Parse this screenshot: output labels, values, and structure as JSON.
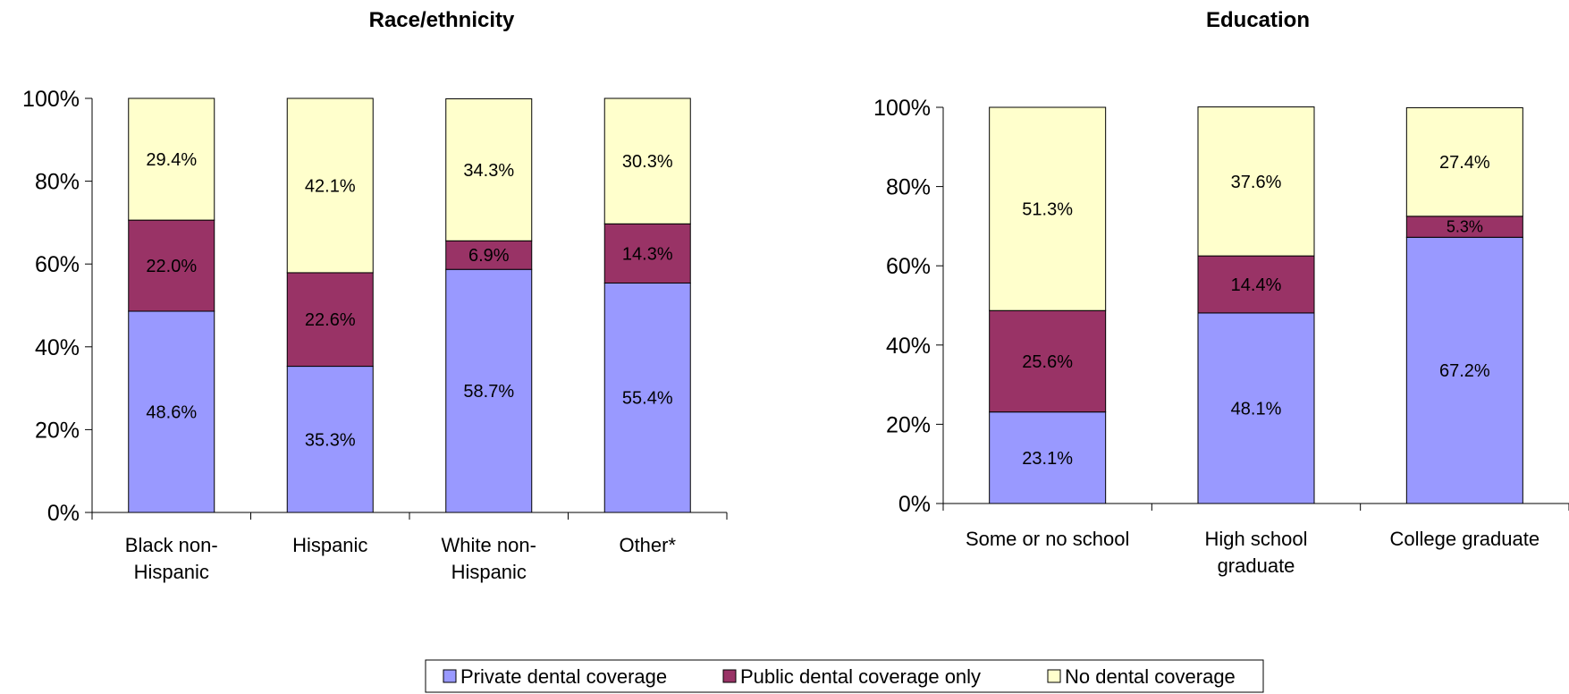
{
  "chart_data": [
    {
      "type": "bar",
      "stacked": true,
      "title": "Race/ethnicity",
      "categories": [
        [
          "Black non-",
          "Hispanic"
        ],
        [
          "Hispanic"
        ],
        [
          "White non-",
          "Hispanic"
        ],
        [
          "Other*"
        ]
      ],
      "series": [
        {
          "name": "Private dental coverage",
          "values": [
            48.6,
            35.3,
            58.7,
            55.4
          ],
          "labels": [
            "48.6%",
            "35.3%",
            "58.7%",
            "55.4%"
          ]
        },
        {
          "name": "Public dental coverage only",
          "values": [
            22.0,
            22.6,
            6.9,
            14.3
          ],
          "labels": [
            "22.0%",
            "22.6%",
            "6.9%",
            "14.3%"
          ]
        },
        {
          "name": "No dental coverage",
          "values": [
            29.4,
            42.1,
            34.3,
            30.3
          ],
          "labels": [
            "29.4%",
            "42.1%",
            "34.3%",
            "30.3%"
          ]
        }
      ],
      "yticks": [
        "0%",
        "20%",
        "40%",
        "60%",
        "80%",
        "100%"
      ],
      "ylim": [
        0,
        100
      ]
    },
    {
      "type": "bar",
      "stacked": true,
      "title": "Education",
      "categories": [
        [
          "Some or no school"
        ],
        [
          "High school",
          "graduate"
        ],
        [
          "College graduate"
        ]
      ],
      "series": [
        {
          "name": "Private dental coverage",
          "values": [
            23.1,
            48.1,
            67.2
          ],
          "labels": [
            "23.1%",
            "48.1%",
            "67.2%"
          ]
        },
        {
          "name": "Public dental coverage only",
          "values": [
            25.6,
            14.4,
            5.3
          ],
          "labels": [
            "25.6%",
            "14.4%",
            "5.3%"
          ]
        },
        {
          "name": "No dental coverage",
          "values": [
            51.3,
            37.6,
            27.4
          ],
          "labels": [
            "51.3%",
            "37.6%",
            "27.4%"
          ]
        }
      ],
      "yticks": [
        "0%",
        "20%",
        "40%",
        "60%",
        "80%",
        "100%"
      ],
      "ylim": [
        0,
        100
      ]
    }
  ],
  "legend": {
    "position": "bottom",
    "items": [
      {
        "label": "Private dental coverage",
        "color": "#9999ff"
      },
      {
        "label": "Public dental coverage only",
        "color": "#993366"
      },
      {
        "label": "No dental coverage",
        "color": "#ffffcc"
      }
    ]
  },
  "colors": [
    "#9999ff",
    "#993366",
    "#ffffcc"
  ]
}
